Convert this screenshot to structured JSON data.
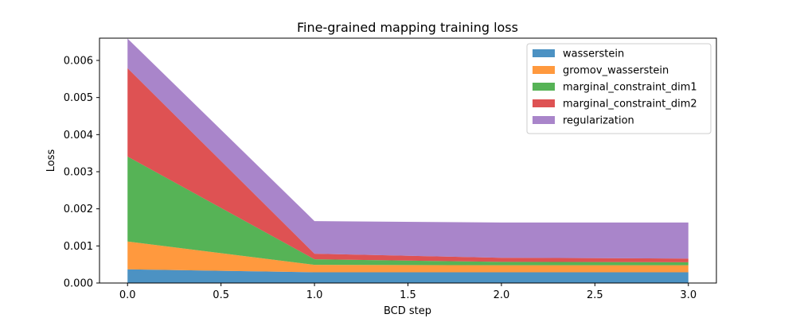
{
  "chart_data": {
    "type": "area",
    "stacked": true,
    "title": "Fine-grained mapping training loss",
    "xlabel": "BCD step",
    "ylabel": "Loss",
    "x": [
      0,
      1,
      2,
      3
    ],
    "xlim": [
      -0.15,
      3.15
    ],
    "ylim": [
      0,
      0.0066
    ],
    "xticks": [
      "0.0",
      "0.5",
      "1.0",
      "1.5",
      "2.0",
      "2.5",
      "3.0"
    ],
    "yticks": [
      "0.000",
      "0.001",
      "0.002",
      "0.003",
      "0.004",
      "0.005",
      "0.006"
    ],
    "legend_position": "top-right",
    "grid": false,
    "series": [
      {
        "name": "wasserstein",
        "color": "#1f77b4",
        "values": [
          0.00037,
          0.00029,
          0.00029,
          0.00029
        ]
      },
      {
        "name": "gromov_wasserstein",
        "color": "#ff7f0e",
        "values": [
          0.00075,
          0.0002,
          0.00019,
          0.00019
        ]
      },
      {
        "name": "marginal_constraint_dim1",
        "color": "#2ca02c",
        "values": [
          0.00229,
          0.00015,
          9e-05,
          8e-05
        ]
      },
      {
        "name": "marginal_constraint_dim2",
        "color": "#d62728",
        "values": [
          0.00238,
          0.00015,
          0.00011,
          0.0001
        ]
      },
      {
        "name": "regularization",
        "color": "#9467bd",
        "values": [
          0.0008,
          0.00088,
          0.00095,
          0.00097
        ]
      }
    ]
  }
}
